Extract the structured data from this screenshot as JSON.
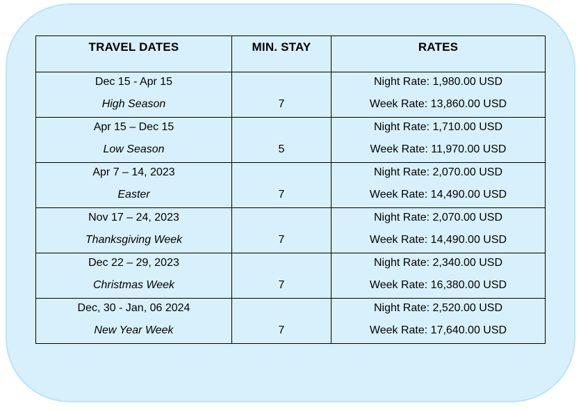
{
  "colors": {
    "panel_fill": "#d8f0fb",
    "panel_border": "#b9e5f6",
    "table_border": "#000000",
    "text": "#000000"
  },
  "table": {
    "headers": [
      "TRAVEL DATES",
      "MIN. STAY",
      "RATES"
    ],
    "rows": [
      {
        "dates": "Dec 15 - Apr 15",
        "season": "High Season",
        "min_stay": "7",
        "night_rate": "Night Rate: 1,980.00 USD",
        "week_rate": "Week Rate: 13,860.00 USD"
      },
      {
        "dates": "Apr 15 – Dec 15",
        "season": "Low Season",
        "min_stay": "5",
        "night_rate": "Night Rate: 1,710.00 USD",
        "week_rate": "Week Rate: 11,970.00 USD"
      },
      {
        "dates": "Apr 7 – 14, 2023",
        "season": "Easter",
        "min_stay": "7",
        "night_rate": "Night Rate: 2,070.00 USD",
        "week_rate": "Week Rate: 14,490.00 USD"
      },
      {
        "dates": "Nov 17 – 24, 2023",
        "season": "Thanksgiving Week",
        "min_stay": "7",
        "night_rate": "Night Rate: 2,070.00 USD",
        "week_rate": "Week Rate: 14,490.00 USD"
      },
      {
        "dates": "Dec 22 – 29, 2023",
        "season": "Christmas Week",
        "min_stay": "7",
        "night_rate": "Night Rate: 2,340.00 USD",
        "week_rate": "Week Rate: 16,380.00 USD"
      },
      {
        "dates": "Dec, 30 - Jan, 06 2024",
        "season": "New Year Week",
        "min_stay": "7",
        "night_rate": "Night Rate: 2,520.00 USD",
        "week_rate": "Week Rate: 17,640.00 USD"
      }
    ]
  }
}
